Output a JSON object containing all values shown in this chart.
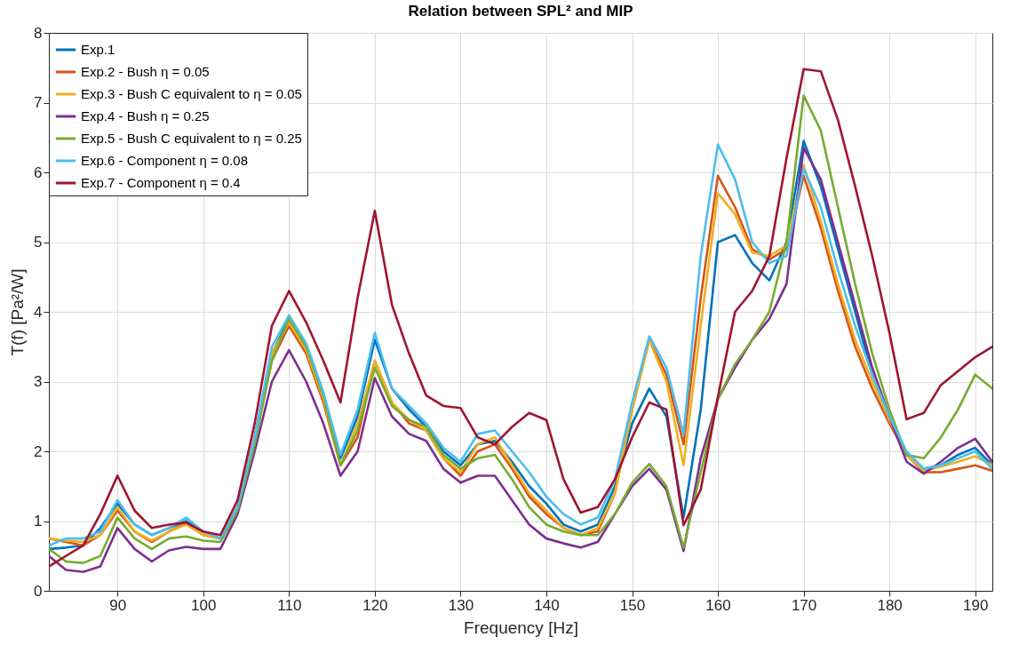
{
  "chart_data": {
    "type": "line",
    "title": "Relation between SPL² and MIP",
    "xlabel": "Frequency [Hz]",
    "ylabel": "T(f) [Pa²/W]",
    "x": [
      82,
      84,
      86,
      88,
      90,
      92,
      94,
      96,
      98,
      100,
      102,
      104,
      106,
      108,
      110,
      112,
      114,
      116,
      118,
      120,
      122,
      124,
      126,
      128,
      130,
      132,
      134,
      136,
      138,
      140,
      142,
      144,
      146,
      148,
      150,
      152,
      154,
      156,
      158,
      160,
      162,
      164,
      166,
      168,
      170,
      172,
      174,
      176,
      178,
      180,
      182,
      184,
      186,
      188,
      190,
      192
    ],
    "xlim": [
      82,
      192
    ],
    "xticks": [
      90,
      100,
      110,
      120,
      130,
      140,
      150,
      160,
      170,
      180,
      190
    ],
    "ylim": [
      0,
      8
    ],
    "yticks": [
      0,
      1,
      2,
      3,
      4,
      5,
      6,
      7,
      8
    ],
    "grid": true,
    "legend": "top left",
    "series": [
      {
        "name": "Exp.1",
        "color": "#0072bd",
        "values": [
          0.6,
          0.62,
          0.65,
          0.9,
          1.25,
          0.95,
          0.8,
          0.9,
          1.0,
          0.85,
          0.75,
          1.2,
          2.2,
          3.4,
          3.9,
          3.5,
          2.8,
          1.9,
          2.5,
          3.6,
          2.9,
          2.6,
          2.35,
          2.0,
          1.8,
          2.1,
          2.15,
          1.85,
          1.5,
          1.25,
          0.95,
          0.85,
          0.95,
          1.5,
          2.4,
          2.9,
          2.5,
          1.05,
          2.6,
          5.0,
          5.1,
          4.7,
          4.45,
          5.0,
          6.45,
          5.8,
          4.9,
          4.0,
          3.1,
          2.5,
          1.95,
          1.75,
          1.8,
          1.95,
          2.05,
          1.8
        ]
      },
      {
        "name": "Exp.2 - Bush η = 0.05",
        "color": "#d95319",
        "values": [
          0.75,
          0.7,
          0.65,
          0.8,
          1.15,
          0.85,
          0.7,
          0.85,
          0.97,
          0.8,
          0.75,
          1.2,
          2.2,
          3.3,
          3.8,
          3.4,
          2.7,
          1.8,
          2.2,
          3.3,
          2.7,
          2.4,
          2.3,
          1.9,
          1.65,
          2.0,
          2.1,
          1.75,
          1.35,
          1.1,
          0.9,
          0.8,
          0.85,
          1.4,
          2.6,
          3.6,
          3.1,
          2.1,
          4.2,
          5.95,
          5.5,
          4.9,
          4.75,
          4.9,
          5.95,
          5.2,
          4.3,
          3.5,
          2.9,
          2.4,
          1.95,
          1.7,
          1.7,
          1.75,
          1.8,
          1.72
        ]
      },
      {
        "name": "Exp.3 - Bush C equivalent to η = 0.05",
        "color": "#edb120",
        "values": [
          0.75,
          0.72,
          0.7,
          0.8,
          1.2,
          0.85,
          0.72,
          0.85,
          0.95,
          0.8,
          0.75,
          1.2,
          2.2,
          3.4,
          3.85,
          3.45,
          2.75,
          1.8,
          2.4,
          3.3,
          2.7,
          2.45,
          2.3,
          1.9,
          1.7,
          2.1,
          2.2,
          1.8,
          1.4,
          1.15,
          0.9,
          0.8,
          0.9,
          1.4,
          2.6,
          3.6,
          3.0,
          1.8,
          3.8,
          5.7,
          5.4,
          4.85,
          4.8,
          4.95,
          6.1,
          5.3,
          4.4,
          3.6,
          3.0,
          2.45,
          1.95,
          1.72,
          1.78,
          1.85,
          1.93,
          1.8
        ]
      },
      {
        "name": "Exp.4 - Bush η = 0.25",
        "color": "#7e2f8e",
        "values": [
          0.5,
          0.3,
          0.27,
          0.35,
          0.9,
          0.6,
          0.42,
          0.58,
          0.63,
          0.6,
          0.6,
          1.1,
          2.0,
          3.0,
          3.45,
          3.0,
          2.4,
          1.65,
          2.0,
          3.05,
          2.5,
          2.25,
          2.15,
          1.75,
          1.55,
          1.65,
          1.65,
          1.3,
          0.95,
          0.75,
          0.68,
          0.62,
          0.7,
          1.1,
          1.5,
          1.75,
          1.45,
          0.57,
          1.9,
          2.75,
          3.2,
          3.6,
          3.9,
          4.4,
          6.35,
          5.9,
          5.0,
          4.1,
          3.2,
          2.5,
          1.85,
          1.68,
          1.85,
          2.05,
          2.18,
          1.85
        ]
      },
      {
        "name": "Exp.5 - Bush C equivalent to η = 0.25",
        "color": "#77ac30",
        "values": [
          0.6,
          0.42,
          0.4,
          0.5,
          1.05,
          0.75,
          0.6,
          0.75,
          0.78,
          0.72,
          0.7,
          1.15,
          2.1,
          3.3,
          3.9,
          3.5,
          2.8,
          1.8,
          2.3,
          3.2,
          2.65,
          2.45,
          2.35,
          1.95,
          1.75,
          1.9,
          1.95,
          1.6,
          1.2,
          0.95,
          0.85,
          0.8,
          0.8,
          1.1,
          1.55,
          1.82,
          1.5,
          0.62,
          1.7,
          2.75,
          3.25,
          3.6,
          4.0,
          5.0,
          7.1,
          6.6,
          5.5,
          4.4,
          3.4,
          2.6,
          1.95,
          1.9,
          2.2,
          2.6,
          3.1,
          2.9
        ]
      },
      {
        "name": "Exp.6 - Component η = 0.08",
        "color": "#4dbeee",
        "values": [
          0.65,
          0.75,
          0.75,
          0.85,
          1.3,
          0.95,
          0.8,
          0.9,
          1.05,
          0.85,
          0.75,
          1.2,
          2.2,
          3.5,
          3.95,
          3.55,
          2.85,
          1.95,
          2.6,
          3.7,
          2.9,
          2.65,
          2.4,
          2.05,
          1.85,
          2.25,
          2.3,
          2.0,
          1.7,
          1.35,
          1.1,
          0.95,
          1.05,
          1.6,
          2.7,
          3.65,
          3.2,
          2.25,
          4.8,
          6.4,
          5.9,
          5.0,
          4.7,
          4.8,
          6.05,
          5.5,
          4.6,
          3.8,
          3.1,
          2.5,
          2.0,
          1.75,
          1.8,
          1.9,
          2.0,
          1.75
        ]
      },
      {
        "name": "Exp.7 - Component η = 0.4",
        "color": "#a2142f",
        "values": [
          0.35,
          0.5,
          0.65,
          1.1,
          1.65,
          1.15,
          0.9,
          0.95,
          0.98,
          0.85,
          0.8,
          1.3,
          2.4,
          3.8,
          4.3,
          3.85,
          3.3,
          2.7,
          4.2,
          5.45,
          4.1,
          3.4,
          2.8,
          2.65,
          2.62,
          2.2,
          2.1,
          2.35,
          2.55,
          2.45,
          1.6,
          1.12,
          1.2,
          1.6,
          2.2,
          2.7,
          2.6,
          0.94,
          1.45,
          2.78,
          4.0,
          4.3,
          4.8,
          6.2,
          7.48,
          7.45,
          6.75,
          5.8,
          4.8,
          3.7,
          2.46,
          2.55,
          2.95,
          3.15,
          3.35,
          3.5
        ]
      }
    ]
  }
}
